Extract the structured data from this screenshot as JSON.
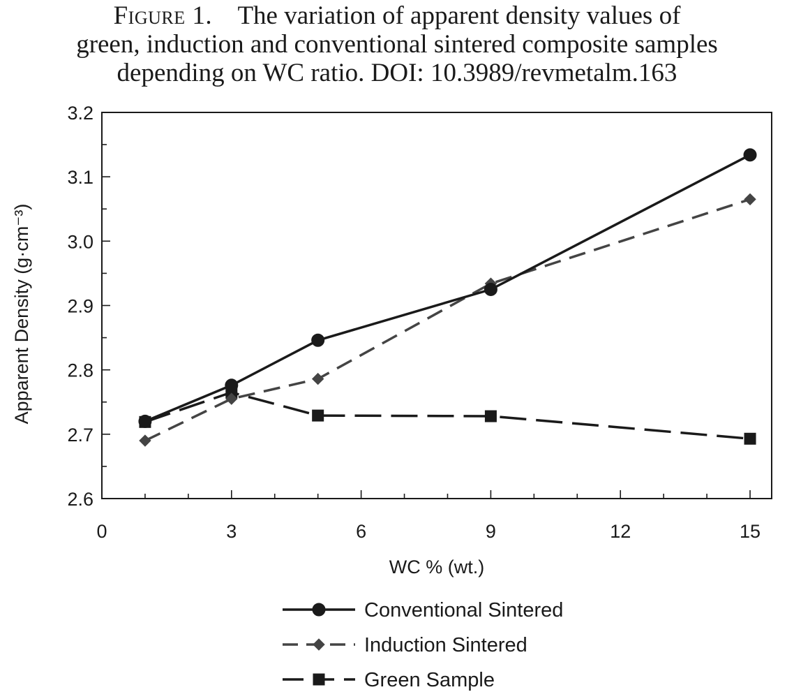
{
  "caption": {
    "figure_label": "Figure 1.",
    "line1": "The variation of apparent density values of",
    "line2": "green, induction and conventional sintered composite samples",
    "line3": "depending on WC ratio. DOI: 10.3989/revmetalm.163"
  },
  "chart_data": {
    "type": "line",
    "title": "",
    "xlabel": "WC % (wt.)",
    "ylabel": "Apparent Density (g·cm⁻³)",
    "xlim": [
      0,
      15.5
    ],
    "ylim": [
      2.6,
      3.2
    ],
    "xticks": [
      0,
      3,
      6,
      9,
      12,
      15
    ],
    "yticks": [
      2.6,
      2.7,
      2.8,
      2.9,
      3.0,
      3.1,
      3.2
    ],
    "xtick_labels": [
      "0",
      "3",
      "6",
      "9",
      "12",
      "15"
    ],
    "ytick_labels": [
      "2.6",
      "2.7",
      "2.8",
      "2.9",
      "3.0",
      "3.1",
      "3.2"
    ],
    "grid": false,
    "legend_position": "bottom",
    "x": [
      1,
      3,
      5,
      9,
      15
    ],
    "series": [
      {
        "name": "Conventional Sintered",
        "values": [
          2.72,
          2.776,
          2.846,
          2.925,
          3.134
        ],
        "marker": "circle",
        "line_style": "solid",
        "color": "#1a1a1a"
      },
      {
        "name": "Induction Sintered",
        "values": [
          2.69,
          2.755,
          2.786,
          2.934,
          3.065
        ],
        "marker": "diamond",
        "line_style": "dashed",
        "color": "#444444"
      },
      {
        "name": "Green Sample",
        "values": [
          2.719,
          2.765,
          2.729,
          2.728,
          2.693
        ],
        "marker": "square",
        "line_style": "long-dash",
        "color": "#1a1a1a"
      }
    ]
  }
}
